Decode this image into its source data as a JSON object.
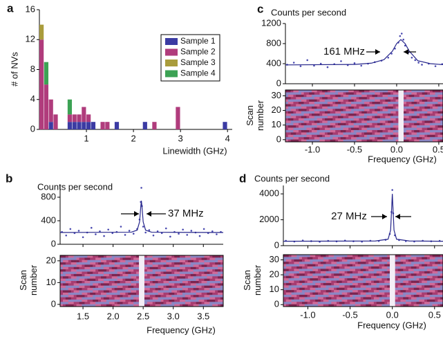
{
  "chart_data": [
    {
      "type": "histogram",
      "panel": "a",
      "ylabel": "# of NVs",
      "xlabel": "Linewidth (GHz)",
      "xlim": [
        0,
        4.1
      ],
      "ylim": [
        0,
        16
      ],
      "xticks": [
        1,
        2,
        3,
        4
      ],
      "yticks": [
        0,
        4,
        8,
        12,
        16
      ],
      "bins": [
        0,
        0.1,
        0.2,
        0.3,
        0.4,
        0.5,
        0.6,
        0.7,
        0.8,
        0.9,
        1.0,
        1.1,
        1.2,
        1.3,
        1.4,
        1.5,
        1.6,
        1.7,
        1.8,
        1.9,
        2.0,
        2.1,
        2.2,
        2.3,
        2.4,
        2.5,
        2.6,
        2.7,
        2.8,
        2.9,
        3.0,
        3.1,
        3.2,
        3.3,
        3.4,
        3.5,
        3.6,
        3.7,
        3.8,
        3.9,
        4.0
      ],
      "series": [
        {
          "name": "Sample 1",
          "color": "#3b3ba3",
          "values": [
            0,
            0,
            1,
            0,
            0,
            0,
            1,
            1,
            1,
            1,
            1,
            1,
            0,
            0,
            0,
            0,
            1,
            0,
            0,
            0,
            0,
            0,
            1,
            0,
            0,
            0,
            0,
            0,
            0,
            0,
            0,
            0,
            0,
            0,
            0,
            0,
            0,
            0,
            0,
            1
          ]
        },
        {
          "name": "Sample 2",
          "color": "#b03c7c",
          "values": [
            12,
            6,
            3,
            2,
            0,
            0,
            1,
            1,
            1,
            2,
            1,
            0,
            0,
            1,
            1,
            0,
            0,
            0,
            0,
            0,
            0,
            0,
            0,
            0,
            1,
            0,
            0,
            0,
            0,
            3,
            0,
            0,
            0,
            0,
            0,
            0,
            0,
            0,
            0,
            0
          ]
        },
        {
          "name": "Sample 3",
          "color": "#a99c3c",
          "values": [
            2,
            0,
            0,
            0,
            0,
            0,
            0,
            0,
            0,
            0,
            0,
            0,
            0,
            0,
            0,
            0,
            0,
            0,
            0,
            0,
            0,
            0,
            0,
            0,
            0,
            0,
            0,
            0,
            0,
            0,
            0,
            0,
            0,
            0,
            0,
            0,
            0,
            0,
            0,
            0
          ]
        },
        {
          "name": "Sample 4",
          "color": "#3ca254",
          "values": [
            0,
            3,
            0,
            0,
            0,
            0,
            2,
            0,
            0,
            0,
            0,
            0,
            0,
            0,
            0,
            0,
            0,
            0,
            0,
            0,
            0,
            0,
            0,
            0,
            0,
            0,
            0,
            0,
            0,
            0,
            0,
            0,
            0,
            0,
            0,
            0,
            0,
            0,
            0,
            0
          ]
        }
      ]
    },
    {
      "type": "spectrum",
      "panel": "b",
      "ylabel": "Counts per second",
      "xlabel": "Frequency (GHz)",
      "annotation": "37 MHz",
      "xlim": [
        1.12,
        3.83
      ],
      "ylim": [
        0,
        1000
      ],
      "yticks": [
        0,
        400,
        800
      ],
      "xticks": [
        {
          "value": 1.5,
          "label": "1.5"
        },
        {
          "value": 2,
          "label": "2.0"
        },
        2.5,
        {
          "value": 3,
          "label": "3.0"
        },
        3.5
      ],
      "series": [
        {
          "style": "markers",
          "color": "#4a4ab0",
          "x": [
            1.15,
            1.22,
            1.29,
            1.36,
            1.43,
            1.5,
            1.57,
            1.64,
            1.71,
            1.78,
            1.85,
            1.92,
            1.99,
            2.06,
            2.13,
            2.2,
            2.27,
            2.34,
            2.4,
            2.44,
            2.46,
            2.47,
            2.48,
            2.5,
            2.54,
            2.6,
            2.67,
            2.74,
            2.81,
            2.88,
            2.95,
            3.02,
            3.09,
            3.16,
            3.23,
            3.3,
            3.37,
            3.44,
            3.51,
            3.58,
            3.65,
            3.72,
            3.79
          ],
          "values": [
            210,
            150,
            260,
            190,
            230,
            120,
            200,
            280,
            170,
            220,
            140,
            250,
            190,
            210,
            300,
            160,
            230,
            180,
            260,
            420,
            720,
            960,
            650,
            300,
            200,
            240,
            150,
            220,
            190,
            270,
            130,
            210,
            180,
            250,
            160,
            230,
            200,
            140,
            260,
            190,
            220,
            170,
            210
          ]
        },
        {
          "style": "line",
          "color": "#25258a",
          "x": [
            1.12,
            2.3,
            2.4,
            2.44,
            2.46,
            2.47,
            2.48,
            2.5,
            2.54,
            2.64,
            3.83
          ],
          "values": [
            200,
            205,
            240,
            380,
            640,
            740,
            640,
            380,
            240,
            205,
            200
          ]
        }
      ],
      "heatmap": {
        "ylabel_lines": [
          "Scan",
          "number"
        ],
        "ylim": [
          -1,
          22.5
        ],
        "yticks": [
          0,
          10,
          20
        ]
      }
    },
    {
      "type": "spectrum",
      "panel": "c",
      "ylabel": "Counts per second",
      "xlabel": "Frequency (GHz)",
      "annotation": "161 MHz",
      "xlim": [
        -1.32,
        0.55
      ],
      "ylim": [
        0,
        1200
      ],
      "yticks": [
        0,
        400,
        800,
        1200
      ],
      "xticks": [
        {
          "value": -1,
          "label": "-1.0"
        },
        {
          "value": -0.5,
          "label": "-0.5"
        },
        {
          "value": 0,
          "label": "0.0"
        },
        0.5
      ],
      "series": [
        {
          "style": "markers",
          "color": "#4a4ab0",
          "x": [
            -1.3,
            -1.22,
            -1.14,
            -1.06,
            -0.98,
            -0.9,
            -0.82,
            -0.74,
            -0.66,
            -0.58,
            -0.5,
            -0.42,
            -0.34,
            -0.26,
            -0.18,
            -0.1,
            -0.06,
            -0.02,
            0.02,
            0.04,
            0.06,
            0.08,
            0.1,
            0.14,
            0.18,
            0.22,
            0.26,
            0.3,
            0.38,
            0.46,
            0.54
          ],
          "values": [
            380,
            420,
            350,
            470,
            360,
            400,
            330,
            390,
            450,
            370,
            410,
            360,
            400,
            430,
            460,
            520,
            600,
            700,
            820,
            950,
            1000,
            880,
            760,
            620,
            520,
            470,
            420,
            380,
            400,
            350,
            390
          ]
        },
        {
          "style": "line",
          "color": "#25258a",
          "x": [
            -1.32,
            -0.5,
            -0.3,
            -0.15,
            -0.05,
            0.0,
            0.05,
            0.1,
            0.15,
            0.25,
            0.4,
            0.55
          ],
          "values": [
            375,
            385,
            410,
            480,
            650,
            800,
            880,
            800,
            650,
            460,
            400,
            380
          ]
        }
      ],
      "heatmap": {
        "ylabel_lines": [
          "Scan",
          "number"
        ],
        "ylim": [
          -1.5,
          34
        ],
        "yticks": [
          0,
          10,
          20,
          30
        ]
      }
    },
    {
      "type": "spectrum",
      "panel": "d",
      "ylabel": "Counts per second",
      "xlabel": "Frequency (GHz)",
      "annotation": "27 MHz",
      "xlim": [
        -1.29,
        0.6
      ],
      "ylim": [
        0,
        4650
      ],
      "yticks": [
        0,
        2000,
        4000
      ],
      "xticks": [
        {
          "value": -1,
          "label": "-1.0"
        },
        {
          "value": -0.5,
          "label": "-0.5"
        },
        {
          "value": 0,
          "label": "0.0"
        },
        0.5
      ],
      "series": [
        {
          "style": "markers",
          "color": "#4a4ab0",
          "x": [
            -1.26,
            -1.16,
            -1.06,
            -0.96,
            -0.86,
            -0.76,
            -0.66,
            -0.56,
            -0.46,
            -0.36,
            -0.26,
            -0.16,
            -0.08,
            -0.03,
            -0.01,
            0.0,
            0.01,
            0.03,
            0.08,
            0.16,
            0.26,
            0.36,
            0.46,
            0.56
          ],
          "values": [
            380,
            320,
            400,
            350,
            300,
            370,
            330,
            390,
            340,
            310,
            380,
            360,
            450,
            900,
            2600,
            4300,
            2500,
            800,
            430,
            350,
            320,
            380,
            340,
            370
          ]
        },
        {
          "style": "line",
          "color": "#25258a",
          "x": [
            -1.29,
            -0.2,
            -0.05,
            -0.02,
            -0.01,
            0.0,
            0.01,
            0.02,
            0.05,
            0.2,
            0.6
          ],
          "values": [
            340,
            360,
            500,
            1200,
            2600,
            4000,
            2600,
            1200,
            500,
            360,
            340
          ]
        }
      ],
      "heatmap": {
        "ylabel_lines": [
          "Scan",
          "number"
        ],
        "ylim": [
          -1.3,
          33.5
        ],
        "yticks": [
          0,
          10,
          20,
          30
        ]
      }
    }
  ]
}
